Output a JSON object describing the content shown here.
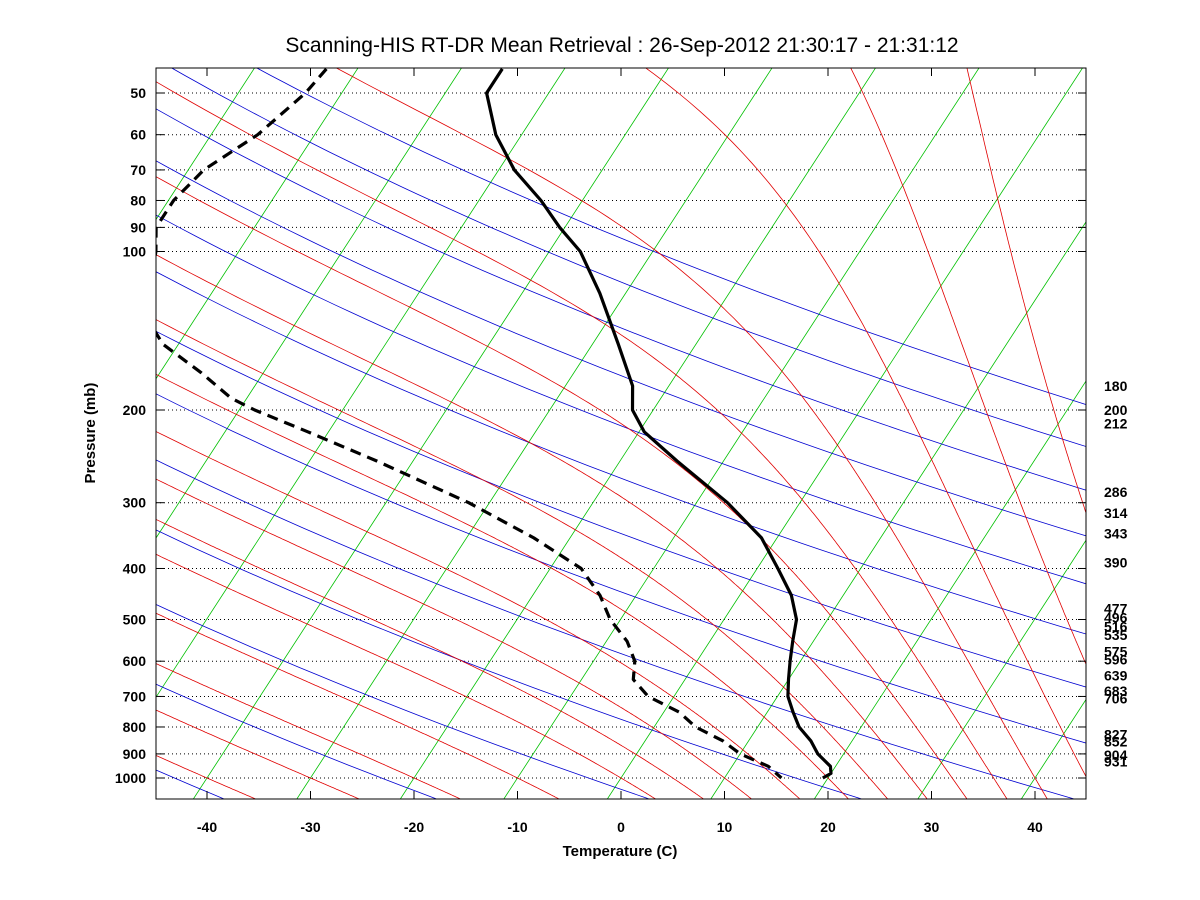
{
  "chart_data": {
    "type": "line",
    "subtype": "skew-T log-P sounding",
    "title": "Scanning-HIS RT-DR Mean Retrieval : 26-Sep-2012 21:30:17 - 21:31:12",
    "xlabel": "Temperature (C)",
    "ylabel": "Pressure (mb)",
    "xlim": [
      -45,
      45
    ],
    "ylim": [
      1100,
      45
    ],
    "y_scale": "log",
    "x_ticks": [
      -40,
      -30,
      -20,
      -10,
      0,
      10,
      20,
      30,
      40
    ],
    "y_ticks": [
      50,
      60,
      70,
      80,
      90,
      100,
      200,
      300,
      400,
      500,
      600,
      700,
      800,
      900,
      1000
    ],
    "grid": "dotted horizontal at pressure ticks",
    "right_axis_labels": [
      "180",
      "200",
      "212",
      "286",
      "314",
      "343",
      "390",
      "477",
      "496",
      "516",
      "535",
      "575",
      "596",
      "639",
      "683",
      "706",
      "827",
      "852",
      "904",
      "931"
    ],
    "series": [
      {
        "name": "Temperature",
        "style": "solid black",
        "pressure": [
          45,
          50,
          60,
          70,
          80,
          90,
          100,
          120,
          150,
          180,
          200,
          220,
          250,
          300,
          350,
          400,
          450,
          500,
          550,
          600,
          650,
          700,
          750,
          800,
          850,
          900,
          950,
          980,
          1000
        ],
        "values": [
          -56,
          -56,
          -52.5,
          -48.5,
          -44,
          -40.5,
          -37,
          -32.5,
          -27.5,
          -23.5,
          -22,
          -19.5,
          -14.5,
          -7,
          -1.5,
          2,
          5,
          7,
          8,
          9,
          10,
          11,
          12.5,
          14,
          16,
          17.5,
          19.5,
          20,
          19.5
        ]
      },
      {
        "name": "Dewpoint",
        "style": "dashed black",
        "pressure": [
          45,
          50,
          60,
          70,
          80,
          90,
          100,
          110,
          130,
          150,
          170,
          190,
          200,
          220,
          250,
          300,
          350,
          400,
          450,
          500,
          550,
          600,
          650,
          700,
          750,
          800,
          850,
          900,
          950,
          1000
        ],
        "values": [
          -73,
          -73.5,
          -75.5,
          -78.5,
          -79.5,
          -79.5,
          -78,
          -77,
          -75.5,
          -71.5,
          -66,
          -61.5,
          -58.5,
          -52,
          -43.5,
          -32,
          -23.5,
          -17,
          -13.5,
          -11,
          -8,
          -6,
          -5,
          -2.5,
          1.5,
          4,
          7.5,
          10,
          13.5,
          15.5
        ]
      }
    ],
    "background_lines": [
      {
        "name": "Isotherms",
        "color": "#00c000",
        "values": [
          -120,
          -110,
          -100,
          -90,
          -80,
          -70,
          -60,
          -50,
          -40,
          -30,
          -20,
          -10,
          0,
          10,
          20,
          30,
          40
        ]
      },
      {
        "name": "Dry adiabats",
        "color": "#0000d0",
        "theta_K": [
          210,
          230,
          250,
          270,
          290,
          310,
          330,
          350,
          370,
          390,
          410,
          430,
          450,
          470
        ]
      },
      {
        "name": "Moist adiabats",
        "color": "#e00000",
        "start_temp_C": [
          -40,
          -30,
          -20,
          -10,
          0,
          5,
          10,
          15,
          20,
          24,
          28,
          32,
          36,
          40,
          45,
          50,
          55
        ]
      }
    ]
  }
}
